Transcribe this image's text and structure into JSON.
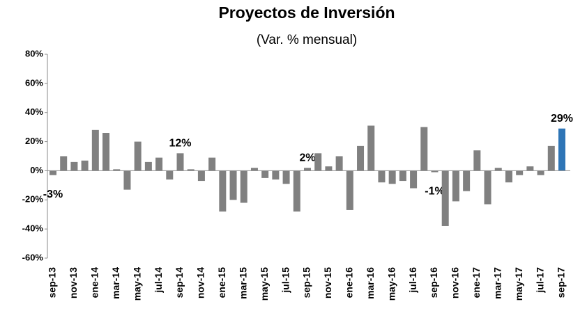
{
  "chart_data": {
    "type": "bar",
    "title": "Proyectos de Inversión",
    "subtitle": "(Var. % mensual)",
    "categories": [
      "sep-13",
      null,
      "nov-13",
      null,
      "ene-14",
      null,
      "mar-14",
      null,
      "may-14",
      null,
      "jul-14",
      null,
      "sep-14",
      null,
      "nov-14",
      null,
      "ene-15",
      null,
      "mar-15",
      null,
      "may-15",
      null,
      "jul-15",
      null,
      "sep-15",
      null,
      "nov-15",
      null,
      "ene-16",
      null,
      "mar-16",
      null,
      "may-16",
      null,
      "jul-16",
      null,
      "sep-16",
      null,
      "nov-16",
      null,
      "ene-17",
      null,
      "mar-17",
      null,
      "may-17",
      null,
      "jul-17",
      null,
      "sep-17"
    ],
    "values": [
      -3,
      10,
      6,
      7,
      28,
      26,
      1,
      -13,
      20,
      6,
      9,
      -6,
      12,
      1,
      -7,
      9,
      -28,
      -20,
      -22,
      2,
      -5,
      -6,
      -9,
      -28,
      2,
      12,
      3,
      10,
      -27,
      17,
      31,
      -8,
      -9,
      -7,
      -12,
      30,
      -1,
      -38,
      -21,
      -14,
      14,
      -23,
      2,
      -8,
      -3,
      3,
      -3,
      17,
      29
    ],
    "value_labels": [
      "-3%",
      null,
      null,
      null,
      null,
      null,
      null,
      null,
      null,
      null,
      null,
      null,
      "12%",
      null,
      null,
      null,
      null,
      null,
      null,
      null,
      null,
      null,
      null,
      null,
      "2%",
      null,
      null,
      null,
      null,
      null,
      null,
      null,
      null,
      null,
      null,
      null,
      "-1%",
      null,
      null,
      null,
      null,
      null,
      null,
      null,
      null,
      null,
      null,
      null,
      "29%"
    ],
    "colors": [
      "#808080",
      "#808080",
      "#808080",
      "#808080",
      "#808080",
      "#808080",
      "#808080",
      "#808080",
      "#808080",
      "#808080",
      "#808080",
      "#808080",
      "#808080",
      "#808080",
      "#808080",
      "#808080",
      "#808080",
      "#808080",
      "#808080",
      "#808080",
      "#808080",
      "#808080",
      "#808080",
      "#808080",
      "#808080",
      "#808080",
      "#808080",
      "#808080",
      "#808080",
      "#808080",
      "#808080",
      "#808080",
      "#808080",
      "#808080",
      "#808080",
      "#808080",
      "#808080",
      "#808080",
      "#808080",
      "#808080",
      "#808080",
      "#808080",
      "#808080",
      "#808080",
      "#808080",
      "#808080",
      "#808080",
      "#808080",
      "#2e75b6"
    ],
    "ylim": [
      -60,
      80
    ],
    "yticks": [
      {
        "value": -60,
        "label": "-60%"
      },
      {
        "value": -40,
        "label": "-40%"
      },
      {
        "value": -20,
        "label": "-20%"
      },
      {
        "value": 0,
        "label": "0%"
      },
      {
        "value": 20,
        "label": "20%"
      },
      {
        "value": 40,
        "label": "40%"
      },
      {
        "value": 60,
        "label": "60%"
      },
      {
        "value": 80,
        "label": "80%"
      }
    ],
    "grid": false
  }
}
